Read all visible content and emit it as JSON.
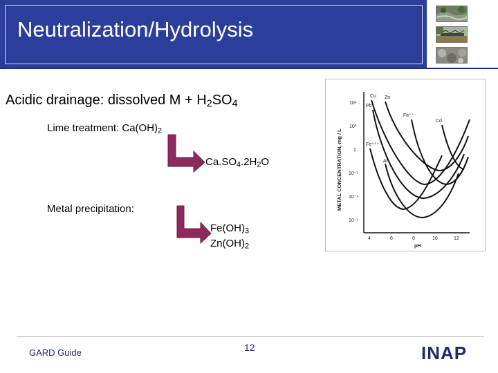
{
  "slide": {
    "title": "Neutralization/Hydrolysis",
    "line1": {
      "text": "Acidic drainage: dissolved M + H",
      "sub1": "2",
      "text2": "SO",
      "sub2": "4"
    },
    "line2": {
      "text": "Lime treatment: Ca(OH)",
      "sub": "2"
    },
    "product1": {
      "a": "Ca.SO",
      "s1": "4",
      "b": ".2H",
      "s2": "2",
      "c": "O"
    },
    "line3": "Metal precipitation:",
    "product2": {
      "a": "Fe(OH)",
      "s1": "3",
      "b": "Zn(OH)",
      "s2": "2"
    },
    "footer_left": "GARD Guide",
    "page_number": "12",
    "logo": {
      "left": "IN",
      "mid": "A",
      "right": "P"
    }
  },
  "graph": {
    "ylabel": "METAL CONCENTRATION, mg / L",
    "xlabel": "pH",
    "y_ticks": [
      "10⁴",
      "10²",
      "1",
      "10⁻²",
      "10⁻⁴",
      "10⁻⁶"
    ],
    "x_ticks": [
      "4",
      "6",
      "8",
      "10",
      "12"
    ],
    "labels": [
      "Cu",
      "Zn",
      "Pb",
      "Fe⁺⁺",
      "Cd",
      "Fe⁺⁺⁺",
      "Al"
    ]
  },
  "colors": {
    "title_bar": "#2b3f9a",
    "arrow": "#8b2a5b",
    "footer_text": "#1f2a66"
  }
}
